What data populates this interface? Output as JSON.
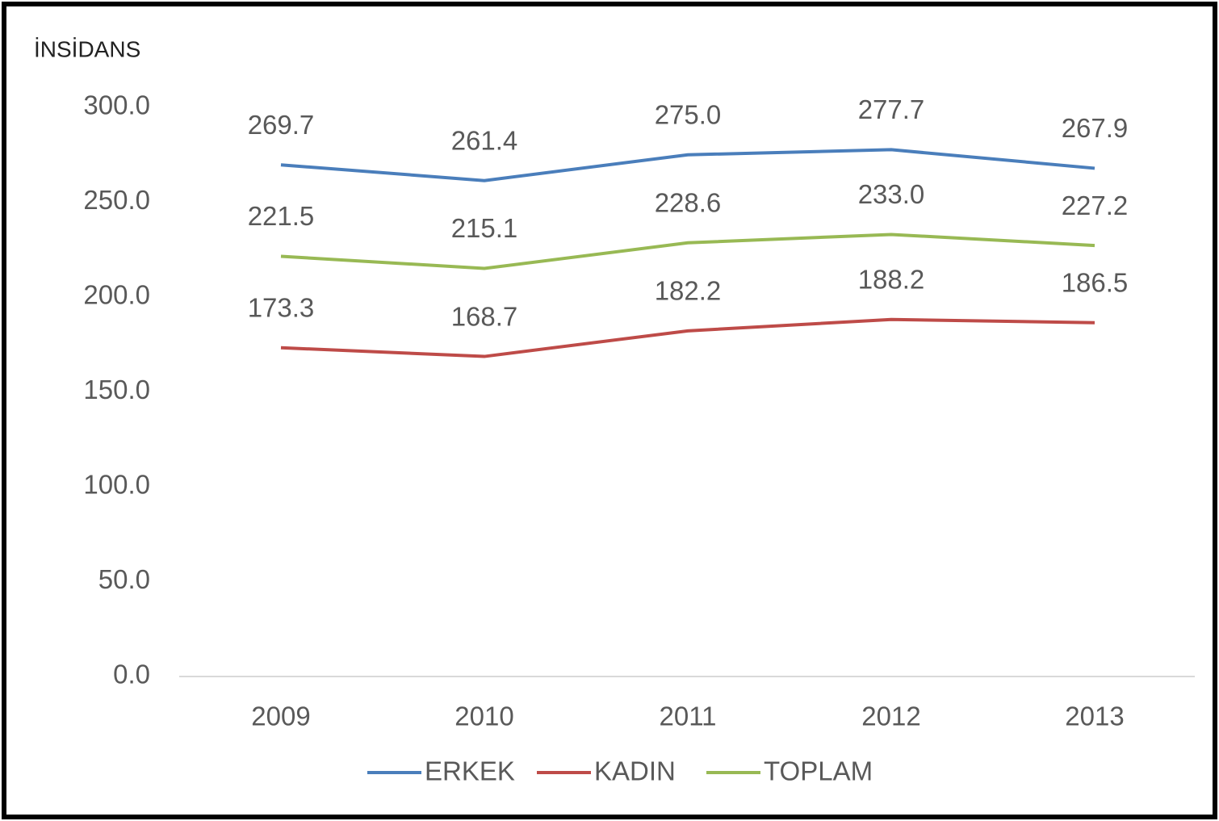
{
  "chart_data": {
    "type": "line",
    "y_axis_label": "İNSİDANS",
    "categories": [
      "2009",
      "2010",
      "2011",
      "2012",
      "2013"
    ],
    "series": [
      {
        "name": "ERKEK",
        "color": "#4a7ebb",
        "values": [
          269.7,
          261.4,
          275.0,
          277.7,
          267.9
        ],
        "value_labels": [
          "269.7",
          "261.4",
          "275.0",
          "277.7",
          "267.9"
        ]
      },
      {
        "name": "KADIN",
        "color": "#be4b48",
        "values": [
          173.3,
          168.7,
          182.2,
          188.2,
          186.5
        ],
        "value_labels": [
          "173.3",
          "168.7",
          "182.2",
          "188.2",
          "186.5"
        ]
      },
      {
        "name": "TOPLAM",
        "color": "#98b954",
        "values": [
          221.5,
          215.1,
          228.6,
          233.0,
          227.2
        ],
        "value_labels": [
          "221.5",
          "215.1",
          "228.6",
          "233.0",
          "227.2"
        ]
      }
    ],
    "ylim": [
      0,
      300
    ],
    "yticks": [
      {
        "value": 0,
        "label": "0.0"
      },
      {
        "value": 50,
        "label": "50.0"
      },
      {
        "value": 100,
        "label": "100.0"
      },
      {
        "value": 150,
        "label": "150.0"
      },
      {
        "value": 200,
        "label": "200.0"
      },
      {
        "value": 250,
        "label": "250.0"
      },
      {
        "value": 300,
        "label": "300.0"
      }
    ],
    "grid": false,
    "legend": "bottom"
  }
}
